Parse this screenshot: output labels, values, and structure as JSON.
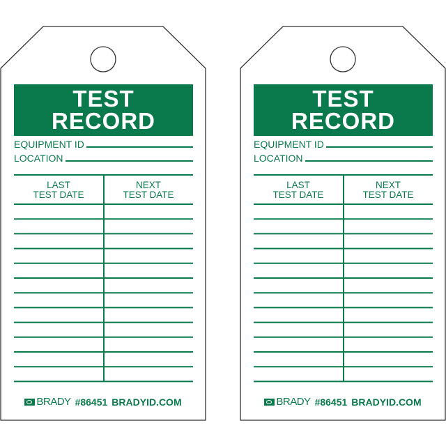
{
  "colors": {
    "brand_green": "#0a7a4c",
    "outline": "#333333"
  },
  "tags": [
    {
      "title_line1": "TEST",
      "title_line2": "RECORD",
      "equipment_label": "EQUIPMENT ID",
      "location_label": "LOCATION",
      "col1_line1": "LAST",
      "col1_line2": "TEST DATE",
      "col2_line1": "NEXT",
      "col2_line2": "TEST DATE",
      "brand": "BRADY",
      "part_number": "#86451",
      "website": "BRADYID.COM"
    },
    {
      "title_line1": "TEST",
      "title_line2": "RECORD",
      "equipment_label": "EQUIPMENT ID",
      "location_label": "LOCATION",
      "col1_line1": "LAST",
      "col1_line2": "TEST DATE",
      "col2_line1": "NEXT",
      "col2_line2": "TEST DATE",
      "brand": "BRADY",
      "part_number": "#86451",
      "website": "BRADYID.COM"
    }
  ]
}
